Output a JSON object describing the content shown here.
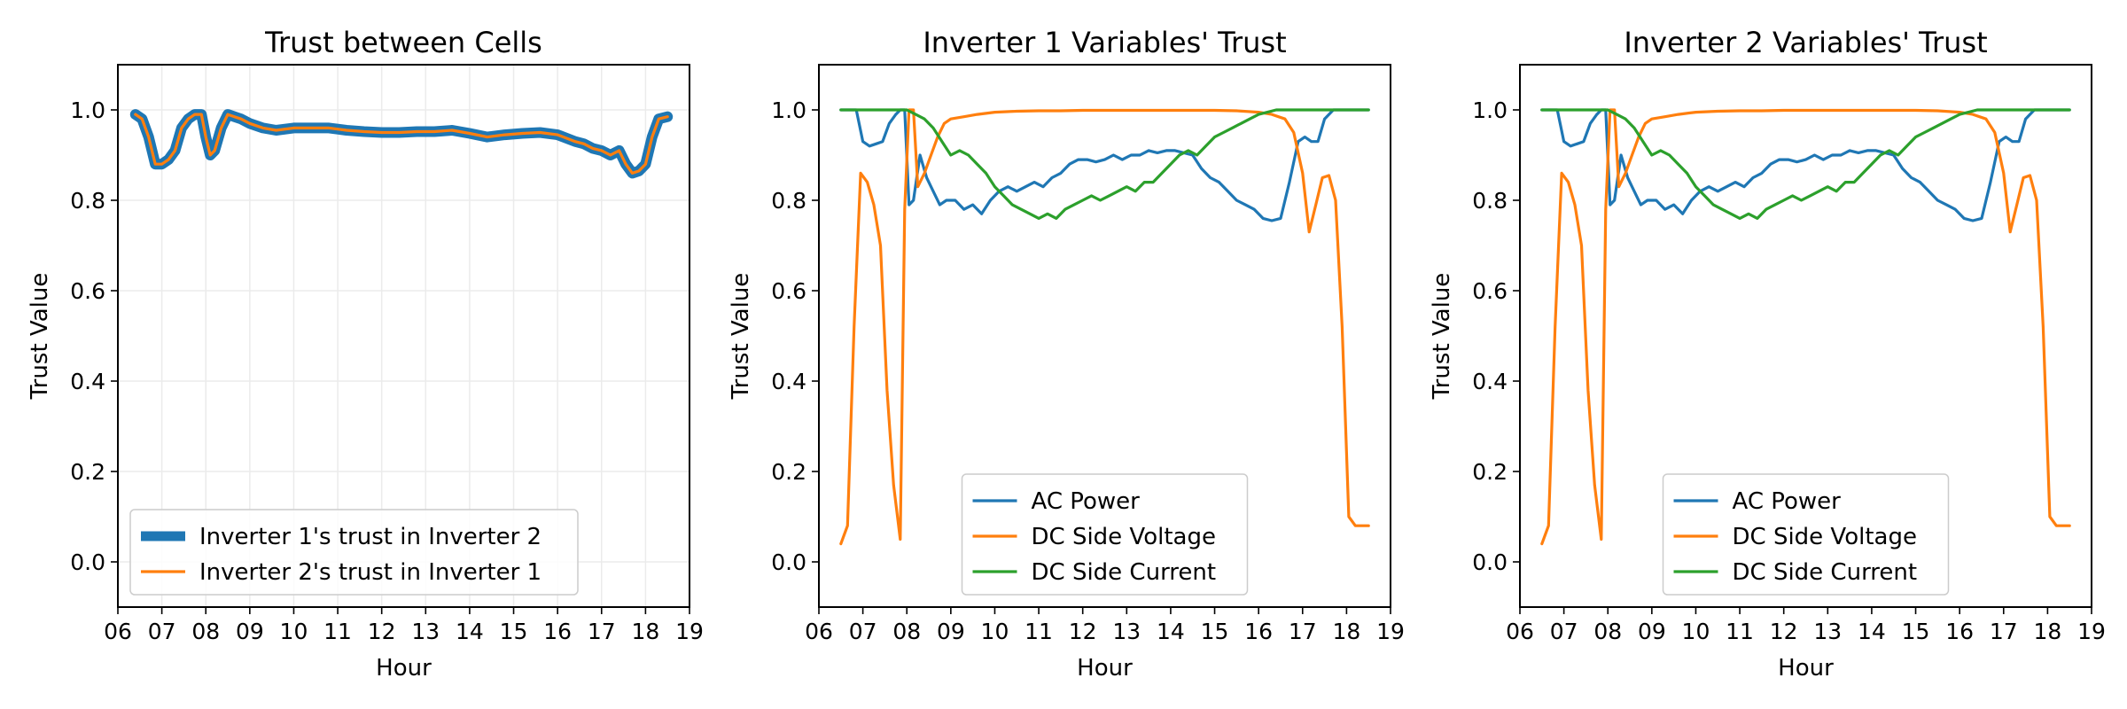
{
  "chart_data": [
    {
      "type": "line",
      "title": "Trust between Cells",
      "xlabel": "Hour",
      "ylabel": "Trust Value",
      "xlim": [
        6.0,
        19.0
      ],
      "ylim": [
        -0.1,
        1.1
      ],
      "grid": true,
      "legend_position": "lower-left",
      "xticks": [
        "06",
        "07",
        "08",
        "09",
        "10",
        "11",
        "12",
        "13",
        "14",
        "15",
        "16",
        "17",
        "18",
        "19"
      ],
      "yticks": [
        "0.0",
        "0.2",
        "0.4",
        "0.6",
        "0.8",
        "1.0"
      ],
      "colors": {
        "series1": "#1f77b4",
        "series2": "#ff7f0e"
      },
      "series": [
        {
          "name": "Inverter 1's trust in Inverter 2",
          "x": [
            6.4,
            6.55,
            6.7,
            6.85,
            7.0,
            7.15,
            7.3,
            7.45,
            7.6,
            7.75,
            7.9,
            8.0,
            8.1,
            8.2,
            8.35,
            8.5,
            8.65,
            8.8,
            9.0,
            9.3,
            9.6,
            10.0,
            10.4,
            10.8,
            11.2,
            11.6,
            12.0,
            12.4,
            12.8,
            13.2,
            13.6,
            14.0,
            14.4,
            14.8,
            15.2,
            15.6,
            16.0,
            16.4,
            16.6,
            16.8,
            17.0,
            17.2,
            17.4,
            17.55,
            17.7,
            17.85,
            18.0,
            18.15,
            18.3,
            18.5
          ],
          "values": [
            0.99,
            0.98,
            0.94,
            0.88,
            0.88,
            0.89,
            0.91,
            0.96,
            0.98,
            0.99,
            0.99,
            0.94,
            0.9,
            0.91,
            0.96,
            0.99,
            0.985,
            0.98,
            0.97,
            0.96,
            0.955,
            0.96,
            0.96,
            0.96,
            0.955,
            0.952,
            0.95,
            0.95,
            0.952,
            0.952,
            0.955,
            0.948,
            0.94,
            0.945,
            0.948,
            0.95,
            0.945,
            0.93,
            0.925,
            0.915,
            0.91,
            0.9,
            0.91,
            0.88,
            0.86,
            0.865,
            0.88,
            0.94,
            0.98,
            0.985
          ]
        },
        {
          "name": "Inverter 2's trust in Inverter 1",
          "x": [
            6.4,
            6.55,
            6.7,
            6.85,
            7.0,
            7.15,
            7.3,
            7.45,
            7.6,
            7.75,
            7.9,
            8.0,
            8.1,
            8.2,
            8.35,
            8.5,
            8.65,
            8.8,
            9.0,
            9.3,
            9.6,
            10.0,
            10.4,
            10.8,
            11.2,
            11.6,
            12.0,
            12.4,
            12.8,
            13.2,
            13.6,
            14.0,
            14.4,
            14.8,
            15.2,
            15.6,
            16.0,
            16.4,
            16.6,
            16.8,
            17.0,
            17.2,
            17.4,
            17.55,
            17.7,
            17.85,
            18.0,
            18.15,
            18.3,
            18.5
          ],
          "values": [
            0.99,
            0.98,
            0.94,
            0.88,
            0.88,
            0.89,
            0.91,
            0.96,
            0.98,
            0.99,
            0.99,
            0.94,
            0.9,
            0.91,
            0.96,
            0.99,
            0.985,
            0.98,
            0.97,
            0.96,
            0.955,
            0.96,
            0.96,
            0.96,
            0.955,
            0.952,
            0.95,
            0.95,
            0.952,
            0.952,
            0.955,
            0.948,
            0.94,
            0.945,
            0.948,
            0.95,
            0.945,
            0.93,
            0.925,
            0.915,
            0.91,
            0.9,
            0.91,
            0.88,
            0.86,
            0.865,
            0.88,
            0.94,
            0.98,
            0.985
          ]
        }
      ]
    },
    {
      "type": "line",
      "title": "Inverter 1 Variables' Trust",
      "xlabel": "Hour",
      "ylabel": "Trust Value",
      "xlim": [
        6.0,
        19.0
      ],
      "ylim": [
        -0.1,
        1.1
      ],
      "grid": false,
      "legend_position": "lower-center",
      "xticks": [
        "06",
        "07",
        "08",
        "09",
        "10",
        "11",
        "12",
        "13",
        "14",
        "15",
        "16",
        "17",
        "18",
        "19"
      ],
      "yticks": [
        "0.0",
        "0.2",
        "0.4",
        "0.6",
        "0.8",
        "1.0"
      ],
      "colors": {
        "ac": "#1f77b4",
        "voltage": "#ff7f0e",
        "current": "#2ca02c"
      },
      "series": [
        {
          "name": "AC Power",
          "x": [
            6.5,
            6.7,
            6.85,
            7.0,
            7.15,
            7.3,
            7.45,
            7.6,
            7.75,
            7.85,
            7.95,
            8.05,
            8.15,
            8.3,
            8.45,
            8.6,
            8.75,
            8.9,
            9.1,
            9.3,
            9.5,
            9.7,
            9.9,
            10.1,
            10.3,
            10.5,
            10.7,
            10.9,
            11.1,
            11.3,
            11.5,
            11.7,
            11.9,
            12.1,
            12.3,
            12.5,
            12.7,
            12.9,
            13.1,
            13.3,
            13.5,
            13.7,
            13.9,
            14.1,
            14.3,
            14.5,
            14.7,
            14.9,
            15.1,
            15.3,
            15.5,
            15.7,
            15.9,
            16.1,
            16.3,
            16.5,
            16.7,
            16.9,
            17.05,
            17.2,
            17.35,
            17.5,
            17.7,
            17.9,
            18.05,
            18.2,
            18.35,
            18.5
          ],
          "values": [
            1.0,
            1.0,
            1.0,
            0.93,
            0.92,
            0.925,
            0.93,
            0.97,
            0.99,
            1.0,
            1.0,
            0.79,
            0.8,
            0.9,
            0.85,
            0.82,
            0.79,
            0.8,
            0.8,
            0.78,
            0.79,
            0.77,
            0.8,
            0.82,
            0.83,
            0.82,
            0.83,
            0.84,
            0.83,
            0.85,
            0.86,
            0.88,
            0.89,
            0.89,
            0.885,
            0.89,
            0.9,
            0.89,
            0.9,
            0.9,
            0.91,
            0.905,
            0.91,
            0.91,
            0.905,
            0.9,
            0.87,
            0.85,
            0.84,
            0.82,
            0.8,
            0.79,
            0.78,
            0.76,
            0.755,
            0.76,
            0.84,
            0.93,
            0.94,
            0.93,
            0.93,
            0.98,
            1.0,
            1.0,
            1.0,
            1.0,
            1.0,
            1.0
          ]
        },
        {
          "name": "DC Side Voltage",
          "x": [
            6.5,
            6.65,
            6.8,
            6.95,
            7.1,
            7.25,
            7.4,
            7.55,
            7.7,
            7.85,
            7.95,
            8.05,
            8.15,
            8.25,
            8.4,
            8.55,
            8.7,
            8.85,
            9.0,
            9.3,
            9.6,
            10.0,
            10.5,
            11.0,
            11.5,
            12.0,
            13.0,
            14.0,
            15.0,
            15.5,
            16.0,
            16.3,
            16.6,
            16.8,
            17.0,
            17.15,
            17.3,
            17.45,
            17.6,
            17.75,
            17.9,
            18.05,
            18.2,
            18.35,
            18.5
          ],
          "values": [
            0.04,
            0.08,
            0.52,
            0.86,
            0.84,
            0.79,
            0.7,
            0.38,
            0.17,
            0.05,
            0.78,
            1.0,
            1.0,
            0.83,
            0.86,
            0.9,
            0.94,
            0.97,
            0.98,
            0.985,
            0.99,
            0.995,
            0.997,
            0.998,
            0.998,
            0.999,
            0.999,
            0.999,
            0.999,
            0.998,
            0.995,
            0.99,
            0.98,
            0.95,
            0.86,
            0.73,
            0.79,
            0.85,
            0.855,
            0.8,
            0.52,
            0.1,
            0.08,
            0.08,
            0.08
          ]
        },
        {
          "name": "DC Side Current",
          "x": [
            6.5,
            7.0,
            7.5,
            8.0,
            8.2,
            8.4,
            8.6,
            8.8,
            9.0,
            9.2,
            9.4,
            9.6,
            9.8,
            10.0,
            10.2,
            10.4,
            10.6,
            10.8,
            11.0,
            11.2,
            11.4,
            11.6,
            11.8,
            12.0,
            12.2,
            12.4,
            12.6,
            12.8,
            13.0,
            13.2,
            13.4,
            13.6,
            13.8,
            14.0,
            14.2,
            14.4,
            14.6,
            14.8,
            15.0,
            15.2,
            15.4,
            15.6,
            15.8,
            16.0,
            16.2,
            16.4,
            16.6,
            17.0,
            17.5,
            18.0,
            18.5
          ],
          "values": [
            1.0,
            1.0,
            1.0,
            1.0,
            0.99,
            0.98,
            0.96,
            0.93,
            0.9,
            0.91,
            0.9,
            0.88,
            0.86,
            0.83,
            0.81,
            0.79,
            0.78,
            0.77,
            0.76,
            0.77,
            0.76,
            0.78,
            0.79,
            0.8,
            0.81,
            0.8,
            0.81,
            0.82,
            0.83,
            0.82,
            0.84,
            0.84,
            0.86,
            0.88,
            0.9,
            0.91,
            0.9,
            0.92,
            0.94,
            0.95,
            0.96,
            0.97,
            0.98,
            0.99,
            0.995,
            1.0,
            1.0,
            1.0,
            1.0,
            1.0,
            1.0
          ]
        }
      ]
    },
    {
      "type": "line",
      "title": "Inverter 2 Variables' Trust",
      "xlabel": "Hour",
      "ylabel": "Trust Value",
      "xlim": [
        6.0,
        19.0
      ],
      "ylim": [
        -0.1,
        1.1
      ],
      "grid": false,
      "legend_position": "lower-center",
      "xticks": [
        "06",
        "07",
        "08",
        "09",
        "10",
        "11",
        "12",
        "13",
        "14",
        "15",
        "16",
        "17",
        "18",
        "19"
      ],
      "yticks": [
        "0.0",
        "0.2",
        "0.4",
        "0.6",
        "0.8",
        "1.0"
      ],
      "colors": {
        "ac": "#1f77b4",
        "voltage": "#ff7f0e",
        "current": "#2ca02c"
      },
      "series": [
        {
          "name": "AC Power",
          "x": [
            6.5,
            6.7,
            6.85,
            7.0,
            7.15,
            7.3,
            7.45,
            7.6,
            7.75,
            7.85,
            7.95,
            8.05,
            8.15,
            8.3,
            8.45,
            8.6,
            8.75,
            8.9,
            9.1,
            9.3,
            9.5,
            9.7,
            9.9,
            10.1,
            10.3,
            10.5,
            10.7,
            10.9,
            11.1,
            11.3,
            11.5,
            11.7,
            11.9,
            12.1,
            12.3,
            12.5,
            12.7,
            12.9,
            13.1,
            13.3,
            13.5,
            13.7,
            13.9,
            14.1,
            14.3,
            14.5,
            14.7,
            14.9,
            15.1,
            15.3,
            15.5,
            15.7,
            15.9,
            16.1,
            16.3,
            16.5,
            16.7,
            16.9,
            17.05,
            17.2,
            17.35,
            17.5,
            17.7,
            17.9,
            18.05,
            18.2,
            18.35,
            18.5
          ],
          "values": [
            1.0,
            1.0,
            1.0,
            0.93,
            0.92,
            0.925,
            0.93,
            0.97,
            0.99,
            1.0,
            1.0,
            0.79,
            0.8,
            0.9,
            0.85,
            0.82,
            0.79,
            0.8,
            0.8,
            0.78,
            0.79,
            0.77,
            0.8,
            0.82,
            0.83,
            0.82,
            0.83,
            0.84,
            0.83,
            0.85,
            0.86,
            0.88,
            0.89,
            0.89,
            0.885,
            0.89,
            0.9,
            0.89,
            0.9,
            0.9,
            0.91,
            0.905,
            0.91,
            0.91,
            0.905,
            0.9,
            0.87,
            0.85,
            0.84,
            0.82,
            0.8,
            0.79,
            0.78,
            0.76,
            0.755,
            0.76,
            0.84,
            0.93,
            0.94,
            0.93,
            0.93,
            0.98,
            1.0,
            1.0,
            1.0,
            1.0,
            1.0,
            1.0
          ]
        },
        {
          "name": "DC Side Voltage",
          "x": [
            6.5,
            6.65,
            6.8,
            6.95,
            7.1,
            7.25,
            7.4,
            7.55,
            7.7,
            7.85,
            7.95,
            8.05,
            8.15,
            8.25,
            8.4,
            8.55,
            8.7,
            8.85,
            9.0,
            9.3,
            9.6,
            10.0,
            10.5,
            11.0,
            11.5,
            12.0,
            13.0,
            14.0,
            15.0,
            15.5,
            16.0,
            16.3,
            16.6,
            16.8,
            17.0,
            17.15,
            17.3,
            17.45,
            17.6,
            17.75,
            17.9,
            18.05,
            18.2,
            18.35,
            18.5
          ],
          "values": [
            0.04,
            0.08,
            0.52,
            0.86,
            0.84,
            0.79,
            0.7,
            0.38,
            0.17,
            0.05,
            0.78,
            1.0,
            1.0,
            0.83,
            0.86,
            0.9,
            0.94,
            0.97,
            0.98,
            0.985,
            0.99,
            0.995,
            0.997,
            0.998,
            0.998,
            0.999,
            0.999,
            0.999,
            0.999,
            0.998,
            0.995,
            0.99,
            0.98,
            0.95,
            0.86,
            0.73,
            0.79,
            0.85,
            0.855,
            0.8,
            0.52,
            0.1,
            0.08,
            0.08,
            0.08
          ]
        },
        {
          "name": "DC Side Current",
          "x": [
            6.5,
            7.0,
            7.5,
            8.0,
            8.2,
            8.4,
            8.6,
            8.8,
            9.0,
            9.2,
            9.4,
            9.6,
            9.8,
            10.0,
            10.2,
            10.4,
            10.6,
            10.8,
            11.0,
            11.2,
            11.4,
            11.6,
            11.8,
            12.0,
            12.2,
            12.4,
            12.6,
            12.8,
            13.0,
            13.2,
            13.4,
            13.6,
            13.8,
            14.0,
            14.2,
            14.4,
            14.6,
            14.8,
            15.0,
            15.2,
            15.4,
            15.6,
            15.8,
            16.0,
            16.2,
            16.4,
            16.6,
            17.0,
            17.5,
            18.0,
            18.5
          ],
          "values": [
            1.0,
            1.0,
            1.0,
            1.0,
            0.99,
            0.98,
            0.96,
            0.93,
            0.9,
            0.91,
            0.9,
            0.88,
            0.86,
            0.83,
            0.81,
            0.79,
            0.78,
            0.77,
            0.76,
            0.77,
            0.76,
            0.78,
            0.79,
            0.8,
            0.81,
            0.8,
            0.81,
            0.82,
            0.83,
            0.82,
            0.84,
            0.84,
            0.86,
            0.88,
            0.9,
            0.91,
            0.9,
            0.92,
            0.94,
            0.95,
            0.96,
            0.97,
            0.98,
            0.99,
            0.995,
            1.0,
            1.0,
            1.0,
            1.0,
            1.0,
            1.0
          ]
        }
      ]
    }
  ]
}
